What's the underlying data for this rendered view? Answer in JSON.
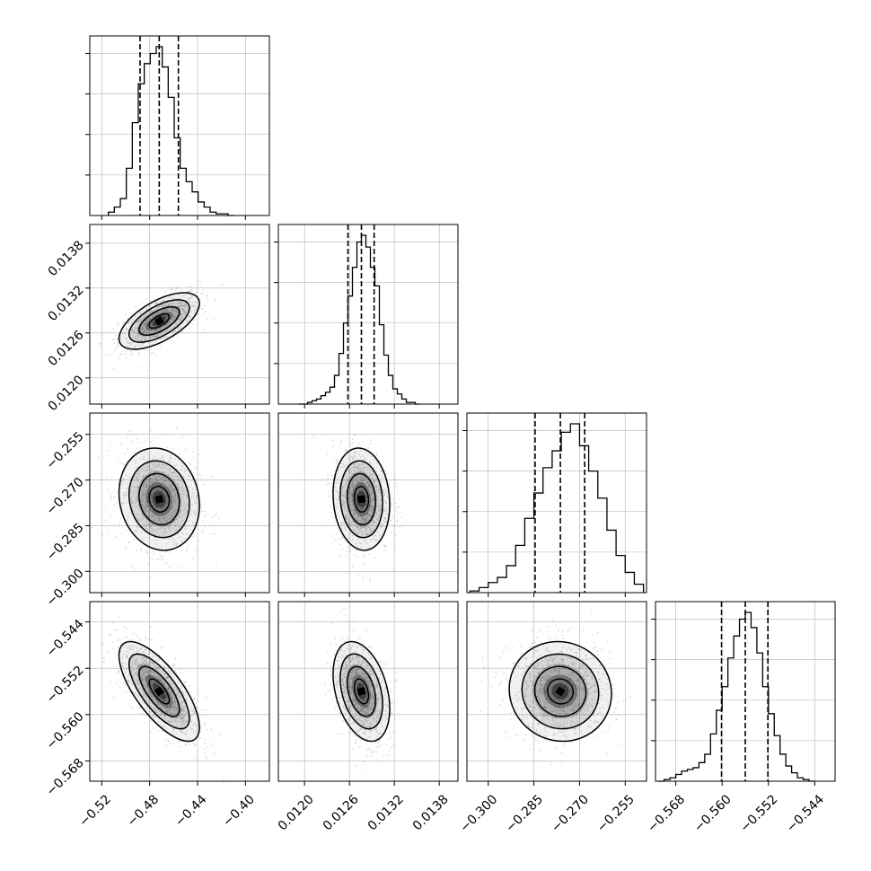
{
  "chart_data": {
    "type": "corner",
    "params": [
      {
        "range": [
          -0.53,
          -0.38
        ],
        "ticks": [
          -0.52,
          -0.48,
          -0.44,
          -0.4
        ],
        "tick_labels": [
          "−0.52",
          "−0.48",
          "−0.44",
          "−0.40"
        ],
        "quantiles": [
          -0.488,
          -0.472,
          -0.456
        ]
      },
      {
        "range": [
          0.01165,
          0.01405
        ],
        "ticks": [
          0.012,
          0.0126,
          0.0132,
          0.0138
        ],
        "tick_labels": [
          "0.0120",
          "0.0126",
          "0.0132",
          "0.0138"
        ],
        "quantiles": [
          0.01258,
          0.01276,
          0.01293
        ]
      },
      {
        "range": [
          -0.307,
          -0.248
        ],
        "ticks": [
          -0.3,
          -0.285,
          -0.27,
          -0.255
        ],
        "tick_labels": [
          "−0.300",
          "−0.285",
          "−0.270",
          "−0.255"
        ],
        "quantiles": [
          -0.2846,
          -0.2763,
          -0.2683
        ]
      },
      {
        "range": [
          -0.5715,
          -0.5405
        ],
        "ticks": [
          -0.568,
          -0.56,
          -0.552,
          -0.544
        ],
        "tick_labels": [
          "−0.568",
          "−0.560",
          "−0.552",
          "−0.544"
        ],
        "quantiles": [
          -0.5601,
          -0.556,
          -0.5521
        ]
      }
    ],
    "histograms": [
      {
        "x": [
          -0.512,
          -0.507,
          -0.502,
          -0.497,
          -0.492,
          -0.487,
          -0.482,
          -0.477,
          -0.472,
          -0.467,
          -0.462,
          -0.457,
          -0.452,
          -0.447,
          -0.442,
          -0.437,
          -0.432,
          -0.427,
          -0.422,
          -0.417,
          -0.412
        ],
        "values": [
          2,
          5,
          10,
          28,
          55,
          78,
          90,
          96,
          100,
          88,
          70,
          46,
          28,
          20,
          14,
          8,
          5,
          2,
          1,
          1,
          0
        ]
      },
      {
        "x": [
          0.01195,
          0.01201,
          0.01207,
          0.01213,
          0.01219,
          0.01225,
          0.01231,
          0.01237,
          0.01243,
          0.01249,
          0.01255,
          0.01261,
          0.01267,
          0.01273,
          0.01279,
          0.01285,
          0.01291,
          0.01297,
          0.01303,
          0.01309,
          0.01315,
          0.01321,
          0.01327,
          0.01333,
          0.01339,
          0.01345,
          0.01351
        ],
        "values": [
          0,
          0,
          1,
          2,
          3,
          5,
          7,
          10,
          17,
          30,
          48,
          64,
          81,
          96,
          100,
          93,
          81,
          70,
          47,
          29,
          17,
          9,
          6,
          3,
          1,
          1,
          0
        ]
      },
      {
        "x": [
          -0.3045,
          -0.3015,
          -0.2985,
          -0.2955,
          -0.2925,
          -0.2895,
          -0.2865,
          -0.2835,
          -0.2805,
          -0.2775,
          -0.2745,
          -0.2715,
          -0.2685,
          -0.2655,
          -0.2625,
          -0.2595,
          -0.2565,
          -0.2535,
          -0.2505
        ],
        "values": [
          1,
          3,
          6,
          9,
          16,
          28,
          44,
          59,
          74,
          84,
          95,
          100,
          87,
          72,
          56,
          37,
          22,
          12,
          5
        ]
      },
      {
        "x": [
          -0.5705,
          -0.5695,
          -0.5685,
          -0.5675,
          -0.5665,
          -0.5655,
          -0.5645,
          -0.5635,
          -0.5625,
          -0.5615,
          -0.5605,
          -0.5595,
          -0.5585,
          -0.5575,
          -0.5565,
          -0.5555,
          -0.5545,
          -0.5535,
          -0.5525,
          -0.5515,
          -0.5505,
          -0.5495,
          -0.5485,
          -0.5475,
          -0.5465,
          -0.5455,
          -0.5445
        ],
        "values": [
          0,
          1,
          2,
          4,
          6,
          7,
          8,
          11,
          16,
          28,
          42,
          56,
          73,
          86,
          96,
          100,
          91,
          76,
          56,
          40,
          27,
          16,
          9,
          5,
          2,
          1,
          0
        ]
      }
    ],
    "pairs": [
      {
        "xi": 0,
        "yi": 1,
        "mean": [
          -0.472,
          0.01276
        ],
        "sd": [
          0.016,
          0.00018
        ],
        "rho": 0.62
      },
      {
        "xi": 0,
        "yi": 2,
        "mean": [
          -0.472,
          -0.2763
        ],
        "sd": [
          0.016,
          0.008
        ],
        "rho": -0.12
      },
      {
        "xi": 1,
        "yi": 2,
        "mean": [
          0.01276,
          -0.2763
        ],
        "sd": [
          0.00018,
          0.008
        ],
        "rho": -0.1
      },
      {
        "xi": 0,
        "yi": 3,
        "mean": [
          -0.472,
          -0.556
        ],
        "sd": [
          0.016,
          0.0041
        ],
        "rho": -0.72
      },
      {
        "xi": 1,
        "yi": 3,
        "mean": [
          0.01276,
          -0.556
        ],
        "sd": [
          0.00018,
          0.0041
        ],
        "rho": -0.35
      },
      {
        "xi": 2,
        "yi": 3,
        "mean": [
          -0.2763,
          -0.556
        ],
        "sd": [
          0.008,
          0.0041
        ],
        "rho": -0.05
      }
    ],
    "contour_levels_sigma": [
      0.5,
      1.0,
      1.5,
      2.0
    ],
    "grid": true,
    "colors": {
      "line": "#000000",
      "grid": "#b0b0b0",
      "points": "#9a9a9a",
      "density": "#000000"
    }
  }
}
